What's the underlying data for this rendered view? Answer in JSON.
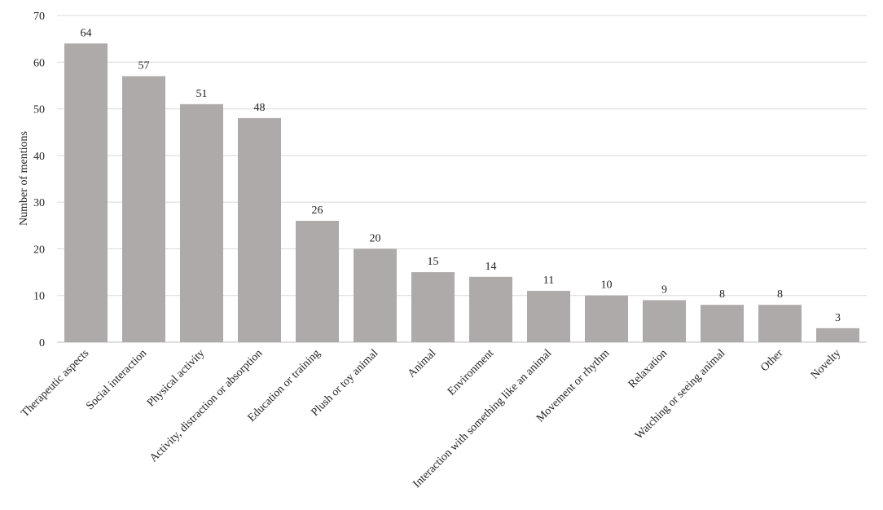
{
  "chart_data": {
    "type": "bar",
    "title": "",
    "xlabel": "",
    "ylabel": "Number of mentions",
    "ylim": [
      0,
      70
    ],
    "yticks": [
      0,
      10,
      20,
      30,
      40,
      50,
      60,
      70
    ],
    "grid": true,
    "bar_color": "#aeaaaa",
    "grid_color": "#d9d9d9",
    "categories": [
      "Therapeutic aspects",
      "Social interaction",
      "Physical activity",
      "Activity, distraction or absorption",
      "Education or training",
      "Plush or toy animal",
      "Animal",
      "Environment",
      "Interaction with something like an animal",
      "Movement or rhythm",
      "Relaxation",
      "Watching or seeing animal",
      "Other",
      "Novelty"
    ],
    "values": [
      64,
      57,
      51,
      48,
      26,
      20,
      15,
      14,
      11,
      10,
      9,
      8,
      8,
      3
    ]
  }
}
